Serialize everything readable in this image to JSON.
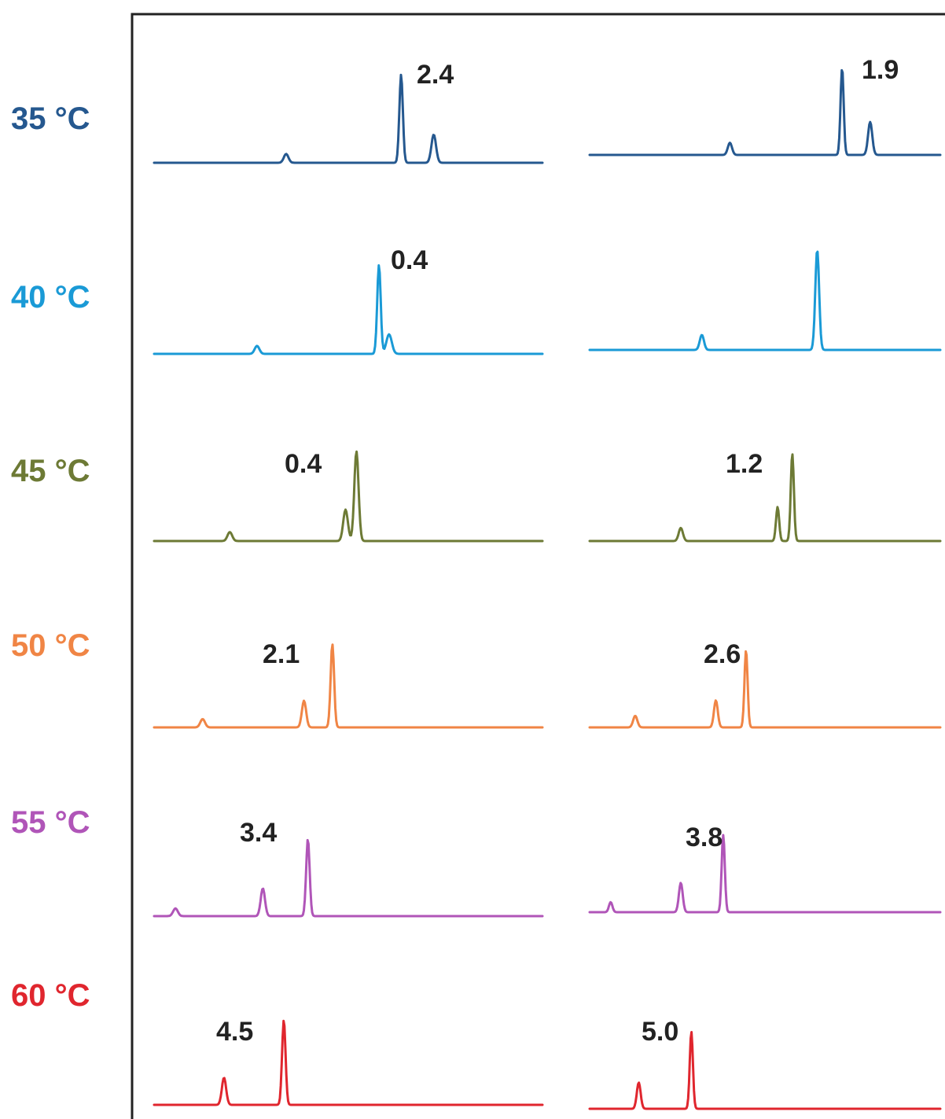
{
  "chart_data": {
    "type": "line",
    "grid": false,
    "columns": 2,
    "rows": [
      {
        "temperature": "35 °C",
        "color": "#25588f",
        "traces": [
          {
            "baseline": 0,
            "resolution_label": "2.4",
            "peaks": [
              {
                "x": 0.34,
                "h": 0.1,
                "w": 0.006
              },
              {
                "x": 0.636,
                "h": 1.0,
                "w": 0.0045
              },
              {
                "x": 0.72,
                "h": 0.32,
                "w": 0.006
              }
            ]
          },
          {
            "baseline": 0,
            "resolution_label": "1.9",
            "peaks": [
              {
                "x": 0.4,
                "h": 0.14,
                "w": 0.006
              },
              {
                "x": 0.72,
                "h": 1.0,
                "w": 0.0045
              },
              {
                "x": 0.8,
                "h": 0.38,
                "w": 0.006
              }
            ]
          }
        ]
      },
      {
        "temperature": "40 °C",
        "color": "#1a9ad6",
        "traces": [
          {
            "baseline": 0,
            "resolution_label": "0.4",
            "peaks": [
              {
                "x": 0.265,
                "h": 0.09,
                "w": 0.006
              },
              {
                "x": 0.579,
                "h": 1.0,
                "w": 0.0045
              },
              {
                "x": 0.605,
                "h": 0.22,
                "w": 0.007
              }
            ]
          },
          {
            "baseline": 0,
            "resolution_label": "",
            "peaks": [
              {
                "x": 0.32,
                "h": 0.15,
                "w": 0.006
              },
              {
                "x": 0.649,
                "h": 1.0,
                "w": 0.0055
              }
            ]
          }
        ]
      },
      {
        "temperature": "45 °C",
        "color": "#6d7a35",
        "traces": [
          {
            "baseline": 0,
            "resolution_label": "0.4",
            "peaks": [
              {
                "x": 0.195,
                "h": 0.1,
                "w": 0.006
              },
              {
                "x": 0.493,
                "h": 0.35,
                "w": 0.006
              },
              {
                "x": 0.521,
                "h": 1.0,
                "w": 0.0055
              }
            ]
          },
          {
            "baseline": 0,
            "resolution_label": "1.2",
            "peaks": [
              {
                "x": 0.26,
                "h": 0.15,
                "w": 0.006
              },
              {
                "x": 0.536,
                "h": 0.39,
                "w": 0.0045
              },
              {
                "x": 0.578,
                "h": 1.0,
                "w": 0.0045
              }
            ]
          }
        ]
      },
      {
        "temperature": "50 °C",
        "color": "#f08545",
        "traces": [
          {
            "baseline": 0,
            "resolution_label": "2.1",
            "peaks": [
              {
                "x": 0.125,
                "h": 0.1,
                "w": 0.006
              },
              {
                "x": 0.386,
                "h": 0.32,
                "w": 0.0055
              },
              {
                "x": 0.459,
                "h": 1.0,
                "w": 0.0045
              }
            ]
          },
          {
            "baseline": 0,
            "resolution_label": "2.6",
            "peaks": [
              {
                "x": 0.13,
                "h": 0.15,
                "w": 0.006
              },
              {
                "x": 0.36,
                "h": 0.35,
                "w": 0.0055
              },
              {
                "x": 0.446,
                "h": 1.0,
                "w": 0.0045
              }
            ]
          }
        ]
      },
      {
        "temperature": "55 °C",
        "color": "#b055b8",
        "traces": [
          {
            "baseline": 0,
            "resolution_label": "3.4",
            "peaks": [
              {
                "x": 0.055,
                "h": 0.1,
                "w": 0.006
              },
              {
                "x": 0.28,
                "h": 0.36,
                "w": 0.0055
              },
              {
                "x": 0.396,
                "h": 1.0,
                "w": 0.0045
              }
            ]
          },
          {
            "baseline": 0,
            "resolution_label": "3.8",
            "peaks": [
              {
                "x": 0.06,
                "h": 0.13,
                "w": 0.005
              },
              {
                "x": 0.26,
                "h": 0.38,
                "w": 0.0055
              },
              {
                "x": 0.381,
                "h": 1.0,
                "w": 0.0045
              }
            ]
          }
        ]
      },
      {
        "temperature": "60 °C",
        "color": "#e0262e",
        "traces": [
          {
            "baseline": 0,
            "resolution_label": "4.5",
            "peaks": [
              {
                "x": 0.18,
                "h": 0.32,
                "w": 0.0055
              },
              {
                "x": 0.334,
                "h": 1.0,
                "w": 0.0045
              }
            ]
          },
          {
            "baseline": 0,
            "resolution_label": "5.0",
            "peaks": [
              {
                "x": 0.14,
                "h": 0.34,
                "w": 0.0055
              },
              {
                "x": 0.29,
                "h": 1.0,
                "w": 0.0045
              }
            ]
          }
        ]
      }
    ]
  }
}
